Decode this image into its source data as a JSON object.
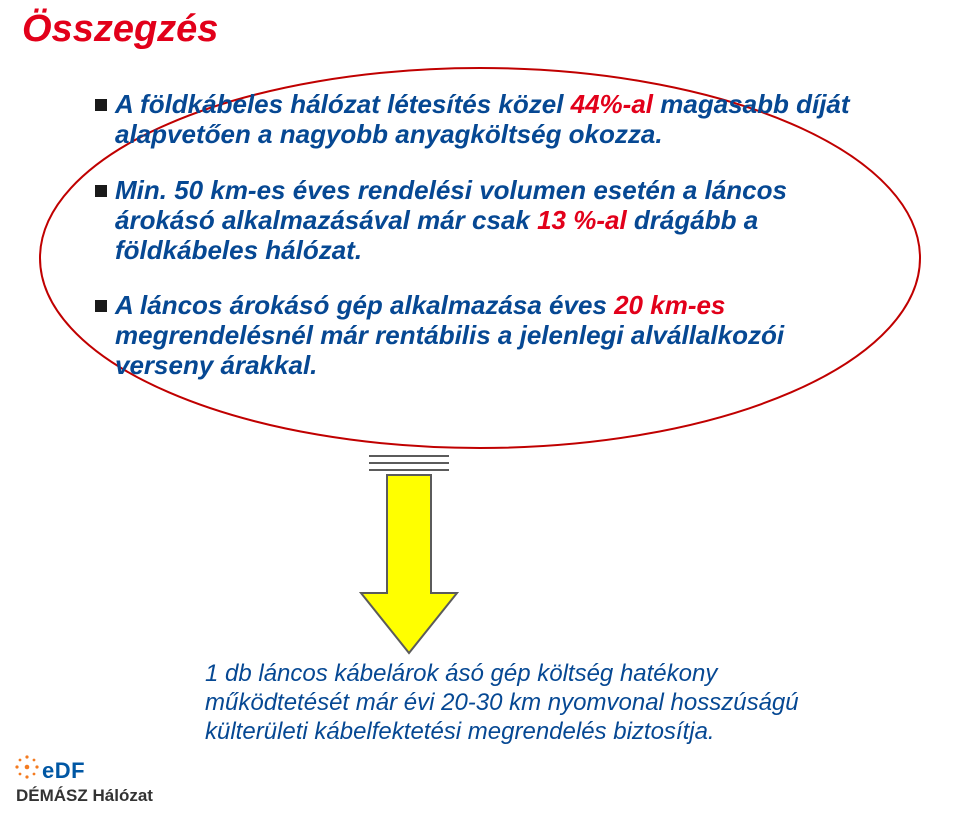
{
  "colors": {
    "title": "#e2001a",
    "bullet_text": "#064893",
    "bullet_marker": "#1a1a1a",
    "ellipse_stroke": "#c00000",
    "arrow_fill": "#ffff00",
    "arrow_stroke": "#5b5b5b",
    "conclusion_text": "#064893",
    "logo_orange": "#f47b20",
    "logo_blue": "#0057a4",
    "logo_sub": "#333333",
    "background": "#ffffff"
  },
  "title": "Összegzés",
  "bullets": [
    {
      "prefix": "A földkábeles hálózat létesítés közel ",
      "em": "44%-al",
      "suffix": " magasabb díját alapvetően a nagyobb anyagköltség okozza."
    },
    {
      "prefix": "Min. 50 km-es éves rendelési volumen esetén a láncos árokásó alkalmazásával már csak ",
      "em": "13 %-al",
      "suffix": " drágább a földkábeles hálózat."
    },
    {
      "prefix": "A láncos árokásó gép alkalmazása éves ",
      "em": "20 km-es",
      "suffix": " megrendelésnél már rentábilis a jelenlegi alvállalkozói verseny árakkal."
    }
  ],
  "conclusion": "1 db láncos kábelárok ásó gép költség hatékony működtetését már évi 20-30 km nyomvonal hosszúságú külterületi kábelfektetési megrendelés biztosítja.",
  "logo": {
    "brand": "eDF",
    "sub": "DÉMÁSZ Hálózat"
  }
}
